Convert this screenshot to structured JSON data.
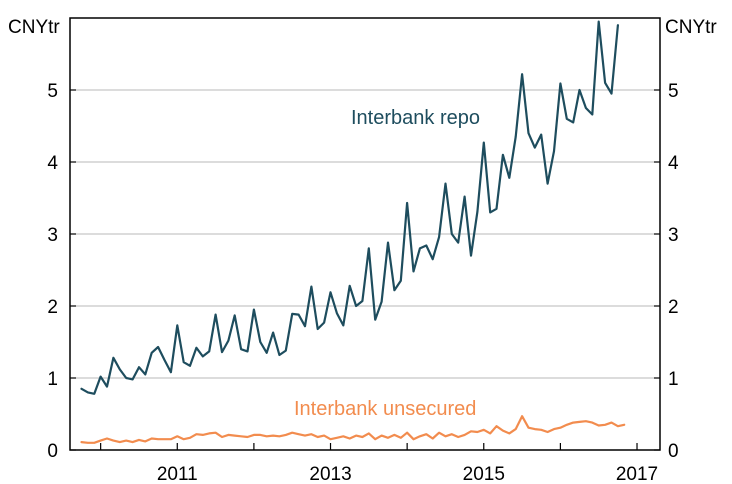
{
  "chart_data": {
    "type": "line",
    "left_unit": "CNYtr",
    "right_unit": "CNYtr",
    "ylim": [
      0,
      6
    ],
    "y_ticks": [
      "0",
      "1",
      "2",
      "3",
      "4",
      "5"
    ],
    "x_ticks": [
      "2011",
      "2013",
      "2015",
      "2017"
    ],
    "x_tick_years": [
      2011,
      2013,
      2015,
      2017
    ],
    "xlim": [
      2009.6,
      2017.3
    ],
    "x_start": 2009.75,
    "x_step_months": 1,
    "grid": true,
    "series": [
      {
        "name": "Interbank repo",
        "color": "#1e4d5e",
        "values": [
          0.85,
          0.8,
          0.78,
          1.02,
          0.88,
          1.28,
          1.12,
          1.0,
          0.98,
          1.15,
          1.05,
          1.35,
          1.43,
          1.25,
          1.08,
          1.73,
          1.22,
          1.17,
          1.42,
          1.3,
          1.37,
          1.88,
          1.36,
          1.52,
          1.87,
          1.4,
          1.37,
          1.95,
          1.5,
          1.35,
          1.63,
          1.32,
          1.38,
          1.89,
          1.88,
          1.72,
          2.27,
          1.68,
          1.77,
          2.19,
          1.9,
          1.73,
          2.28,
          2.0,
          2.07,
          2.8,
          1.81,
          2.06,
          2.88,
          2.22,
          2.35,
          3.43,
          2.48,
          2.8,
          2.84,
          2.65,
          2.96,
          3.7,
          3.0,
          2.88,
          3.52,
          2.7,
          3.31,
          4.27,
          3.3,
          3.35,
          4.1,
          3.78,
          4.35,
          5.22,
          4.4,
          4.2,
          4.38,
          3.7,
          4.15,
          5.09,
          4.6,
          4.55,
          5.0,
          4.75,
          4.66,
          5.95,
          5.1,
          4.95,
          5.9
        ]
      },
      {
        "name": "Interbank unsecured",
        "color": "#f28c4e",
        "values": [
          0.11,
          0.1,
          0.1,
          0.13,
          0.16,
          0.13,
          0.11,
          0.13,
          0.11,
          0.14,
          0.12,
          0.16,
          0.15,
          0.15,
          0.15,
          0.19,
          0.15,
          0.17,
          0.22,
          0.21,
          0.23,
          0.24,
          0.18,
          0.21,
          0.2,
          0.19,
          0.18,
          0.21,
          0.21,
          0.19,
          0.2,
          0.19,
          0.21,
          0.24,
          0.22,
          0.2,
          0.22,
          0.18,
          0.2,
          0.15,
          0.17,
          0.19,
          0.16,
          0.2,
          0.18,
          0.23,
          0.15,
          0.2,
          0.17,
          0.21,
          0.17,
          0.24,
          0.15,
          0.19,
          0.22,
          0.16,
          0.24,
          0.19,
          0.22,
          0.18,
          0.21,
          0.26,
          0.25,
          0.28,
          0.23,
          0.33,
          0.27,
          0.23,
          0.29,
          0.47,
          0.31,
          0.29,
          0.28,
          0.25,
          0.29,
          0.31,
          0.35,
          0.38,
          0.39,
          0.4,
          0.38,
          0.34,
          0.35,
          0.38,
          0.33,
          0.35
        ]
      }
    ]
  },
  "labels": {
    "repo": "Interbank repo",
    "unsecured": "Interbank unsecured"
  }
}
